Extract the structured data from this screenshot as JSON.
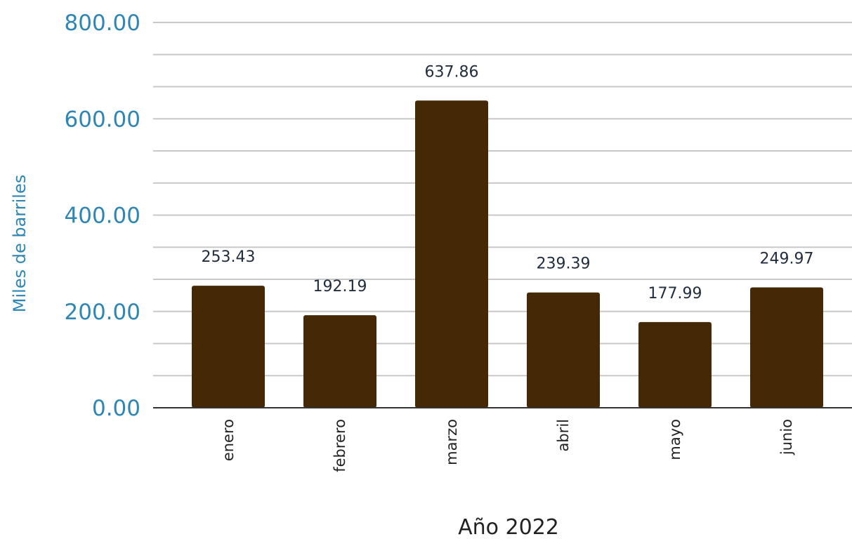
{
  "chart_data": {
    "type": "bar",
    "categories": [
      "enero",
      "febrero",
      "marzo",
      "abril",
      "mayo",
      "junio"
    ],
    "values": [
      253.43,
      192.19,
      637.86,
      239.39,
      177.99,
      249.97
    ],
    "data_labels": [
      "253.43",
      "192.19",
      "637.86",
      "239.39",
      "177.99",
      "249.97"
    ],
    "ylim": [
      0,
      800
    ],
    "y_ticks": [
      0,
      200,
      400,
      600,
      800
    ],
    "y_tick_labels": [
      "0.00",
      "200.00",
      "400.00",
      "600.00",
      "800.00"
    ],
    "xlabel": "Año 2022",
    "ylabel": "Miles de barriles",
    "grid": true,
    "legend": "none",
    "colors": {
      "bar": "#452806",
      "axis_text": "#2e86b5",
      "grid": "#c8c8c8",
      "axis_line": "#333333"
    }
  }
}
